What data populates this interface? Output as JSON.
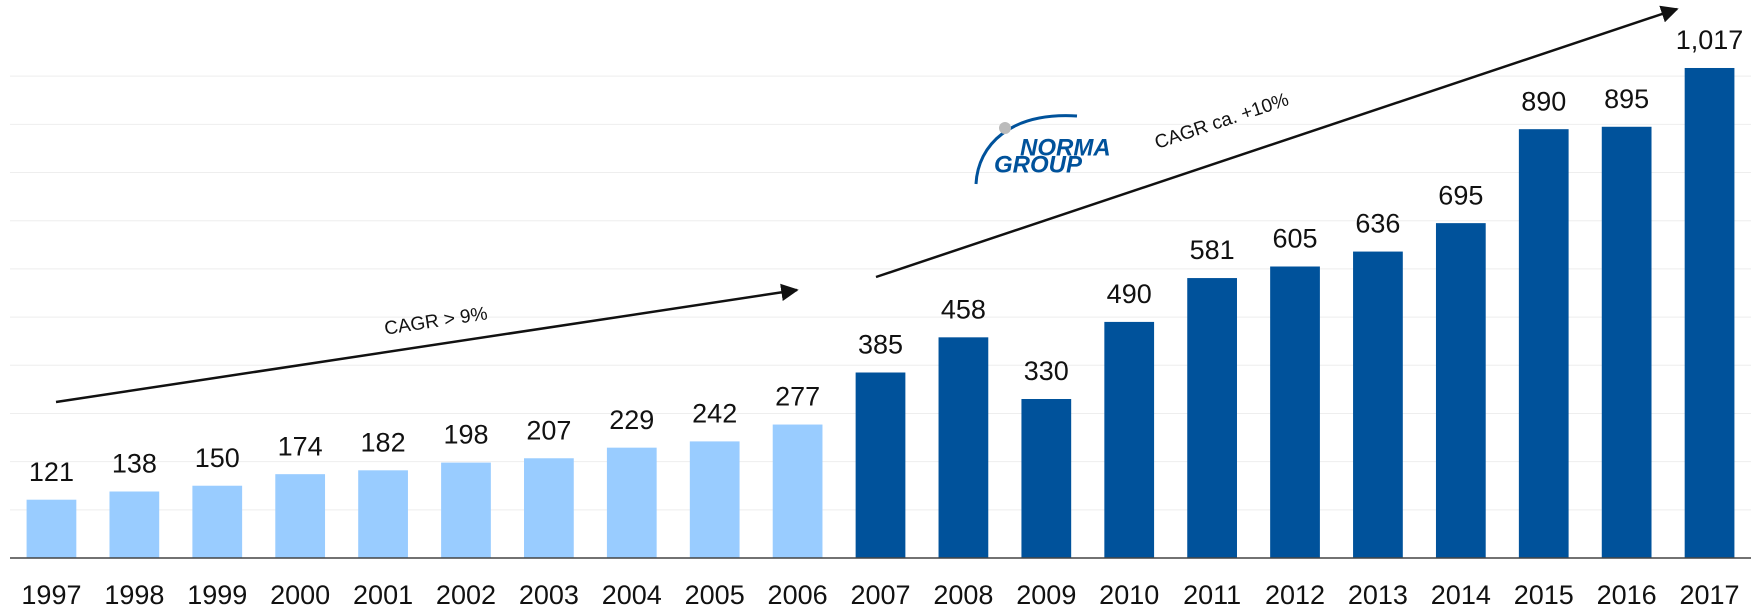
{
  "chart_data": {
    "type": "bar",
    "categories": [
      "1997",
      "1998",
      "1999",
      "2000",
      "2001",
      "2002",
      "2003",
      "2004",
      "2005",
      "2006",
      "2007",
      "2008",
      "2009",
      "2010",
      "2011",
      "2012",
      "2013",
      "2014",
      "2015",
      "2016",
      "2017"
    ],
    "values": [
      121,
      138,
      150,
      174,
      182,
      198,
      207,
      229,
      242,
      277,
      385,
      458,
      330,
      490,
      581,
      605,
      636,
      695,
      890,
      895,
      1017
    ],
    "value_labels": [
      "121",
      "138",
      "150",
      "174",
      "182",
      "198",
      "207",
      "229",
      "242",
      "277",
      "385",
      "458",
      "330",
      "490",
      "581",
      "605",
      "636",
      "695",
      "890",
      "895",
      "1,017"
    ],
    "colors": [
      "#99ccff",
      "#99ccff",
      "#99ccff",
      "#99ccff",
      "#99ccff",
      "#99ccff",
      "#99ccff",
      "#99ccff",
      "#99ccff",
      "#99ccff",
      "#00529b",
      "#00529b",
      "#00529b",
      "#00529b",
      "#00529b",
      "#00529b",
      "#00529b",
      "#00529b",
      "#00529b",
      "#00529b",
      "#00529b"
    ],
    "ylim": [
      0,
      1100
    ],
    "yticks": [
      0,
      100,
      200,
      300,
      400,
      500,
      600,
      700,
      800,
      900,
      1000
    ],
    "grid": true,
    "annotations": [
      "CAGR > 9%",
      "CAGR ca. +10%"
    ],
    "logo": [
      "NORMA",
      "GROUP"
    ]
  }
}
